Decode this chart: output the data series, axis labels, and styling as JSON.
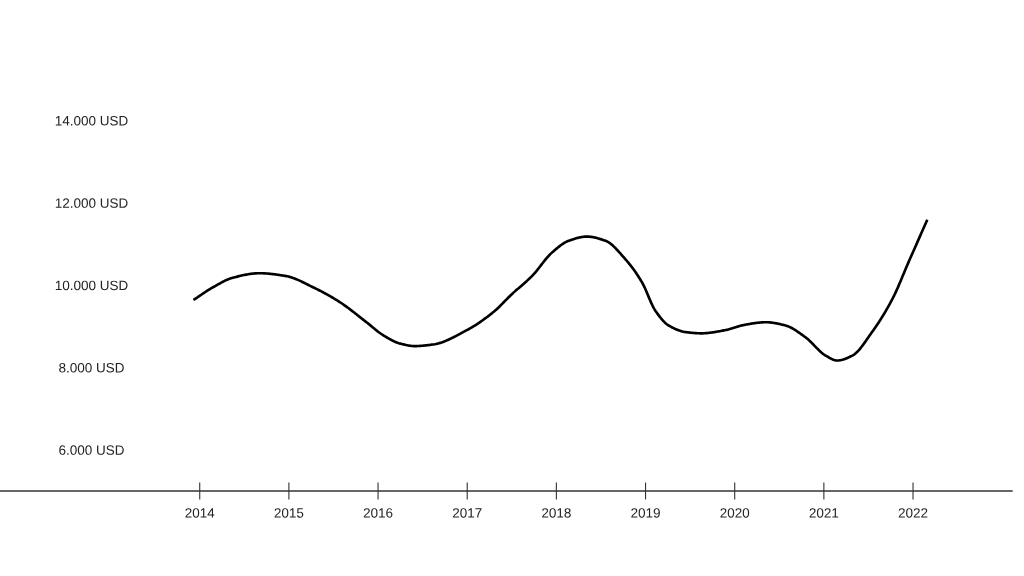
{
  "chart_data": {
    "type": "line",
    "x": [
      2013.93,
      2014.15,
      2014.37,
      2014.67,
      2014.97,
      2015.27,
      2015.57,
      2015.87,
      2016.06,
      2016.25,
      2016.41,
      2016.62,
      2016.99,
      2017.29,
      2017.5,
      2017.73,
      2017.95,
      2018.14,
      2018.34,
      2018.55,
      2018.77,
      2018.96,
      2019.11,
      2019.26,
      2019.45,
      2019.63,
      2019.9,
      2020.12,
      2020.35,
      2020.57,
      2020.79,
      2021.02,
      2021.15,
      2021.32,
      2021.54,
      2021.77,
      2021.95,
      2022.16
    ],
    "series": [
      {
        "color": "#000000",
        "values": [
          9640,
          9950,
          10180,
          10290,
          10220,
          9950,
          9590,
          9100,
          8780,
          8580,
          8520,
          8560,
          8900,
          9340,
          9780,
          10230,
          10790,
          11080,
          11180,
          11080,
          10640,
          10070,
          9380,
          9020,
          8860,
          8830,
          8910,
          9040,
          9100,
          9020,
          8740,
          8290,
          8170,
          8290,
          8860,
          9670,
          10560,
          11590
        ]
      }
    ],
    "xlim": [
      2011.76,
      2023.11
    ],
    "xticks": [
      2014,
      2015,
      2016,
      2017,
      2018,
      2019,
      2020,
      2021,
      2022
    ],
    "ylim": [
      5000,
      14000
    ],
    "yticks": [
      {
        "value": 6000,
        "label": "6.000 USD"
      },
      {
        "value": 8000,
        "label": "8.000 USD"
      },
      {
        "value": 10000,
        "label": "10.000 USD"
      },
      {
        "value": 12000,
        "label": "12.000 USD"
      },
      {
        "value": 14000,
        "label": "14.000 USD"
      }
    ],
    "line_style": "solid"
  }
}
